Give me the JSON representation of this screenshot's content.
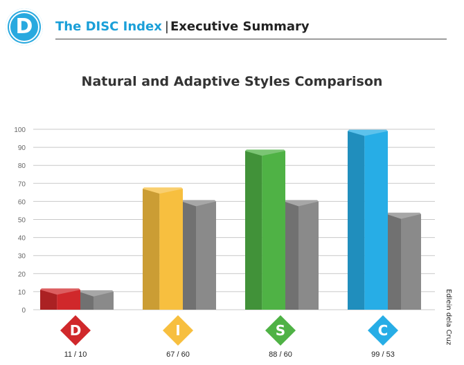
{
  "header": {
    "logo_letter": "D",
    "brand": "The DISC Index",
    "separator": "|",
    "section": "Executive Summary"
  },
  "credit": "Edlein dela Cruz",
  "chart_data": {
    "type": "bar",
    "title": "Natural and Adaptive Styles Comparison",
    "categories": [
      "D",
      "I",
      "S",
      "C"
    ],
    "category_labels": [
      "11 / 10",
      "67 / 60",
      "88 / 60",
      "99 / 53"
    ],
    "ylim": [
      0,
      100
    ],
    "yticks": [
      0,
      10,
      20,
      30,
      40,
      50,
      60,
      70,
      80,
      90,
      100
    ],
    "grid": true,
    "series": [
      {
        "values": [
          11,
          67,
          88,
          99
        ]
      },
      {
        "values": [
          10,
          60,
          60,
          53
        ]
      }
    ],
    "colors": {
      "D": "#d0282b",
      "I": "#f7bf3f",
      "S": "#4fb245",
      "C": "#27ade6",
      "adaptive": "#8a8a8a"
    }
  }
}
